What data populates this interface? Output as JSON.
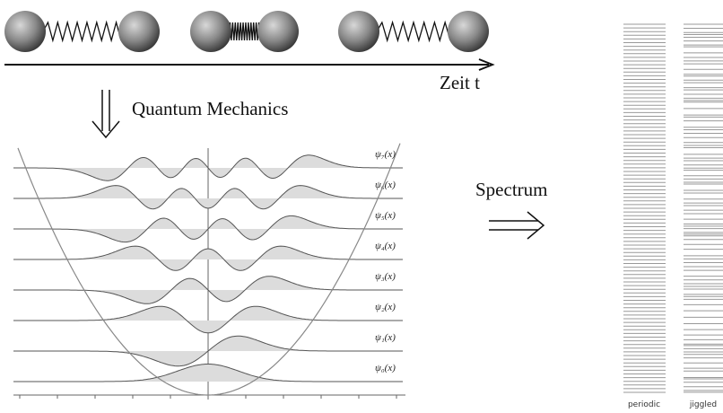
{
  "time_axis_label": "Zeit t",
  "quantum_label": "Quantum Mechanics",
  "plot": {
    "wavefunction_labels": [
      "ψ₇(x)",
      "ψ₆(x)",
      "ψ₅(x)",
      "ψ₄(x)",
      "ψ₃(x)",
      "ψ₂(x)",
      "ψ₁(x)",
      "ψ₀(x)"
    ]
  },
  "spectrum": {
    "title": "Spectrum",
    "column_labels": [
      "periodic",
      "jiggled"
    ]
  }
}
